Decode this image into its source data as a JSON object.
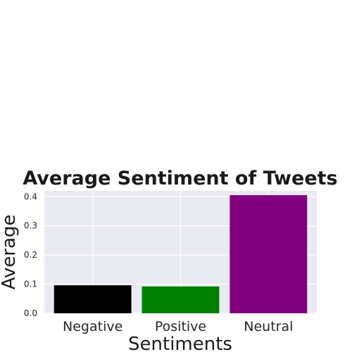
{
  "chart_data": {
    "type": "bar",
    "title": "Average Sentiment of Tweets",
    "xlabel": "Sentiments",
    "ylabel": "Average",
    "categories": [
      "Negative",
      "Positive",
      "Neutral"
    ],
    "values": [
      0.096,
      0.092,
      0.405
    ],
    "colors": [
      "#000000",
      "#008000",
      "#800080"
    ],
    "ylim": [
      0,
      0.42
    ],
    "yticks": [
      0.0,
      0.1,
      0.2,
      0.3,
      0.4
    ],
    "ytick_labels": [
      "0.0",
      "0.1",
      "0.2",
      "0.3",
      "0.4"
    ],
    "grid": true,
    "background": "#eaeaf2",
    "grid_color": "#ffffff"
  }
}
